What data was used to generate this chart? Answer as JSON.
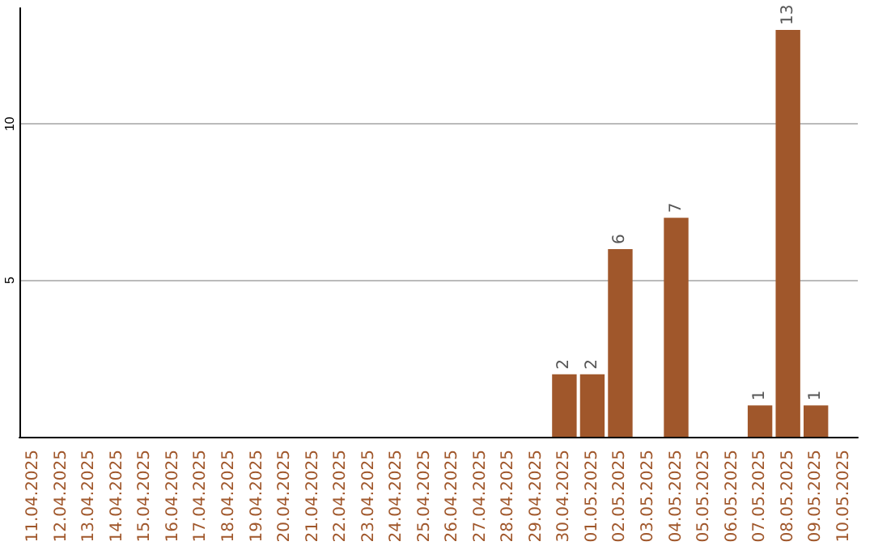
{
  "chart_data": {
    "type": "bar",
    "categories": [
      "11.04.2025",
      "12.04.2025",
      "13.04.2025",
      "14.04.2025",
      "15.04.2025",
      "16.04.2025",
      "17.04.2025",
      "18.04.2025",
      "19.04.2025",
      "20.04.2025",
      "21.04.2025",
      "22.04.2025",
      "23.04.2025",
      "24.04.2025",
      "25.04.2025",
      "26.04.2025",
      "27.04.2025",
      "28.04.2025",
      "29.04.2025",
      "30.04.2025",
      "01.05.2025",
      "02.05.2025",
      "03.05.2025",
      "04.05.2025",
      "05.05.2025",
      "06.05.2025",
      "07.05.2025",
      "08.05.2025",
      "09.05.2025",
      "10.05.2025"
    ],
    "values": [
      null,
      null,
      null,
      null,
      null,
      null,
      null,
      null,
      null,
      null,
      null,
      null,
      null,
      null,
      null,
      null,
      null,
      null,
      null,
      2,
      2,
      6,
      null,
      7,
      null,
      null,
      1,
      13,
      1,
      null
    ],
    "color": "#a0572b",
    "ylim": [
      0,
      13.7
    ],
    "yticks": [
      5,
      10
    ],
    "grid": "y",
    "data_labels": true
  }
}
